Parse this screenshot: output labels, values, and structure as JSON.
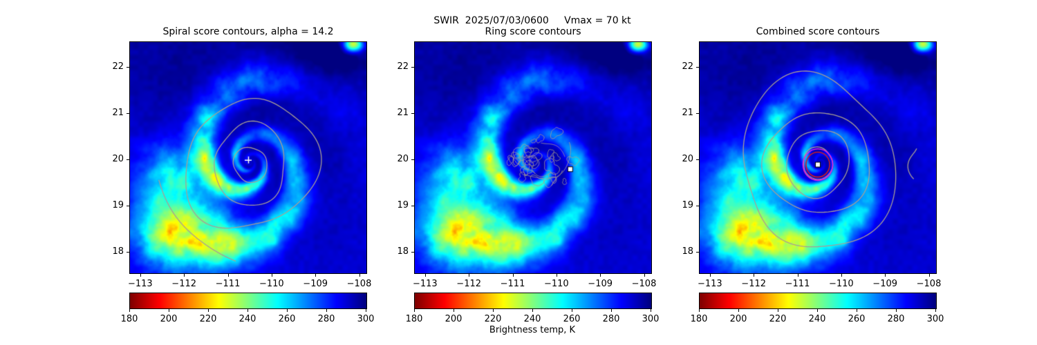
{
  "figure": {
    "suptitle": "SWIR  2025/07/03/0600     Vmax = 70 kt",
    "colorbar_label": "Brightness temp, K"
  },
  "axes": {
    "xtick_labels": [
      "−113",
      "−112",
      "−111",
      "−110",
      "−109",
      "−108"
    ],
    "xtick_values": [
      -113,
      -112,
      -111,
      -110,
      -109,
      -108
    ],
    "ytick_labels": [
      "22",
      "21",
      "20",
      "19",
      "18"
    ],
    "ytick_values": [
      22,
      21,
      20,
      19,
      18
    ]
  },
  "colorbar": {
    "min": 180,
    "max": 300,
    "tick_labels": [
      "180",
      "200",
      "220",
      "240",
      "260",
      "280",
      "300"
    ],
    "tick_values": [
      180,
      200,
      220,
      240,
      260,
      280,
      300
    ]
  },
  "panels": [
    {
      "id": "spiral",
      "title": "Spiral score contours, alpha = 14.2"
    },
    {
      "id": "ring",
      "title": "Ring score contours"
    },
    {
      "id": "combined",
      "title": "Combined score contours"
    }
  ],
  "chart_data": {
    "type": "heatmap",
    "sensor": "SWIR",
    "datetime": "2025/07/03/0600",
    "vmax_kt": 70,
    "value_label": "Brightness temp, K",
    "value_range": [
      180,
      300
    ],
    "colormap": "jet reversed (180 K dark red → 300 K dark blue)",
    "x_axis": "longitude, degrees",
    "y_axis": "latitude, degrees",
    "xlim": [
      -113.25,
      -107.85
    ],
    "ylim": [
      17.55,
      22.55
    ],
    "storm_center_lonlat": [
      -110.5,
      19.95
    ],
    "panels": [
      {
        "title": "Spiral score contours, alpha = 14.2",
        "alpha": 14.2,
        "contour_color": "#a89e94",
        "contour_center": [
          -110.5,
          19.9
        ],
        "contour_radii_deg": [
          0.38,
          0.85,
          1.45
        ],
        "open_arc_radius_deg": 2.15,
        "marker": {
          "type": "plus",
          "color": "#ffffff",
          "lon": -110.55,
          "lat": 20.0
        }
      },
      {
        "title": "Ring score contours",
        "contour_color": "#a89e94",
        "contour_center": [
          -110.35,
          19.95
        ],
        "contour_annulus_deg": [
          0.15,
          0.85
        ],
        "marker": {
          "type": "square",
          "color": "#ffffff",
          "lon": -109.7,
          "lat": 19.8
        }
      },
      {
        "title": "Combined score contours",
        "contour_color": "#a89e94",
        "contour_center": [
          -110.55,
          19.93
        ],
        "contour_radii_deg": [
          0.34,
          0.72,
          1.15,
          1.8
        ],
        "rings": [
          {
            "color": "#e020e0",
            "radius_deg": 0.34
          },
          {
            "color": "#cc2020",
            "radius_deg": 0.27
          }
        ],
        "marker": {
          "type": "square",
          "color": "#ffffff",
          "lon": -110.55,
          "lat": 19.9
        }
      }
    ]
  }
}
